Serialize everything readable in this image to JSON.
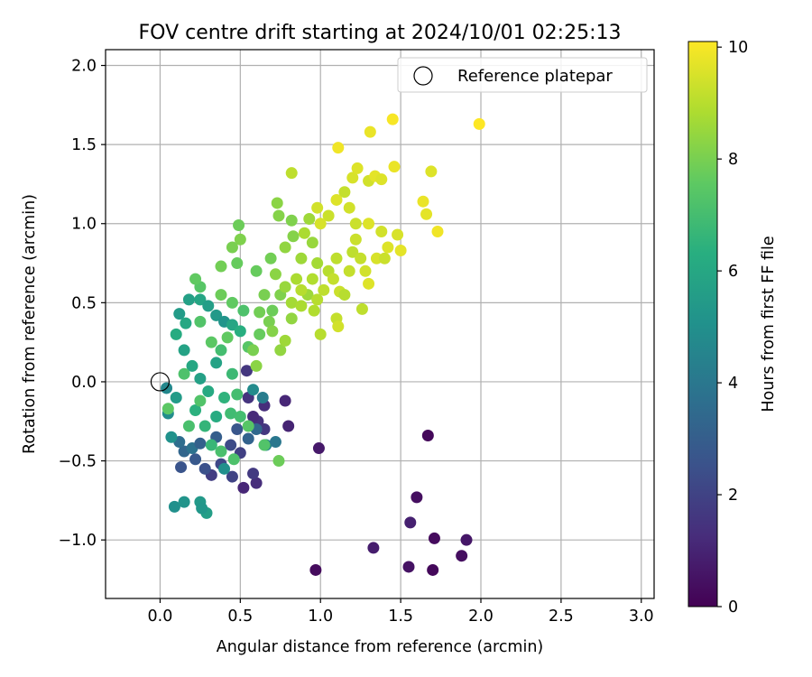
{
  "chart_data": {
    "type": "scatter",
    "title": "FOV centre drift starting at 2024/10/01 02:25:13",
    "xlabel": "Angular distance from reference (arcmin)",
    "ylabel": "Rotation from reference (arcmin)",
    "xlim": [
      -0.34,
      3.08
    ],
    "ylim": [
      -1.37,
      2.1
    ],
    "xticks": [
      "0.0",
      "0.5",
      "1.0",
      "1.5",
      "2.0",
      "2.5",
      "3.0"
    ],
    "xtick_values": [
      0,
      0.5,
      1.0,
      1.5,
      2.0,
      2.5,
      3.0
    ],
    "yticks": [
      "−1.0",
      "−0.5",
      "0.0",
      "0.5",
      "1.0",
      "1.5",
      "2.0"
    ],
    "ytick_values": [
      -1.0,
      -0.5,
      0,
      0.5,
      1.0,
      1.5,
      2.0
    ],
    "grid": true,
    "legend": {
      "placement": "top-right",
      "entries": [
        "Reference platepar"
      ]
    },
    "reference_point": {
      "x": 0,
      "y": 0
    },
    "colorbar": {
      "label": "Hours from first FF file",
      "colormap": "viridis",
      "range": [
        0,
        10.1
      ],
      "ticks": [
        "0",
        "2",
        "4",
        "6",
        "8",
        "10"
      ],
      "tick_values": [
        0,
        2,
        4,
        6,
        8,
        10
      ]
    },
    "points": [
      {
        "x": 0.97,
        "y": -1.19,
        "hours": 0.3
      },
      {
        "x": 1.7,
        "y": -1.19,
        "hours": 0.2
      },
      {
        "x": 1.55,
        "y": -1.17,
        "hours": 0.5
      },
      {
        "x": 1.88,
        "y": -1.1,
        "hours": 0.4
      },
      {
        "x": 1.33,
        "y": -1.05,
        "hours": 0.8
      },
      {
        "x": 1.91,
        "y": -1.0,
        "hours": 0.6
      },
      {
        "x": 1.71,
        "y": -0.99,
        "hours": 0.3
      },
      {
        "x": 1.56,
        "y": -0.89,
        "hours": 0.9
      },
      {
        "x": 1.6,
        "y": -0.73,
        "hours": 0.4
      },
      {
        "x": 1.67,
        "y": -0.34,
        "hours": 0.2
      },
      {
        "x": 0.99,
        "y": -0.42,
        "hours": 0.7
      },
      {
        "x": 0.8,
        "y": -0.28,
        "hours": 1.0
      },
      {
        "x": 0.78,
        "y": -0.12,
        "hours": 1.1
      },
      {
        "x": 0.65,
        "y": -0.15,
        "hours": 1.3
      },
      {
        "x": 0.61,
        "y": -0.25,
        "hours": 1.4
      },
      {
        "x": 0.65,
        "y": -0.3,
        "hours": 1.6
      },
      {
        "x": 0.58,
        "y": -0.22,
        "hours": 1.2
      },
      {
        "x": 0.55,
        "y": -0.1,
        "hours": 1.5
      },
      {
        "x": 0.52,
        "y": -0.67,
        "hours": 1.1
      },
      {
        "x": 0.6,
        "y": -0.64,
        "hours": 1.3
      },
      {
        "x": 0.58,
        "y": -0.58,
        "hours": 1.7
      },
      {
        "x": 0.45,
        "y": -0.6,
        "hours": 2.0
      },
      {
        "x": 0.32,
        "y": -0.59,
        "hours": 1.8
      },
      {
        "x": 0.38,
        "y": -0.52,
        "hours": 2.2
      },
      {
        "x": 0.28,
        "y": -0.55,
        "hours": 2.5
      },
      {
        "x": 0.22,
        "y": -0.49,
        "hours": 2.8
      },
      {
        "x": 0.13,
        "y": -0.54,
        "hours": 2.6
      },
      {
        "x": 0.54,
        "y": 0.07,
        "hours": 1.6
      },
      {
        "x": 0.5,
        "y": -0.45,
        "hours": 1.9
      },
      {
        "x": 0.44,
        "y": -0.4,
        "hours": 2.3
      },
      {
        "x": 0.48,
        "y": -0.3,
        "hours": 2.7
      },
      {
        "x": 0.35,
        "y": -0.35,
        "hours": 3.0
      },
      {
        "x": 0.55,
        "y": -0.36,
        "hours": 3.2
      },
      {
        "x": 0.6,
        "y": -0.3,
        "hours": 3.4
      },
      {
        "x": 0.15,
        "y": -0.44,
        "hours": 3.3
      },
      {
        "x": 0.12,
        "y": -0.38,
        "hours": 3.6
      },
      {
        "x": 0.2,
        "y": -0.42,
        "hours": 3.8
      },
      {
        "x": 0.25,
        "y": -0.39,
        "hours": 3.1
      },
      {
        "x": 0.66,
        "y": -0.4,
        "hours": 4.5
      },
      {
        "x": 0.72,
        "y": -0.38,
        "hours": 4.0
      },
      {
        "x": 0.64,
        "y": -0.1,
        "hours": 4.2
      },
      {
        "x": 0.58,
        "y": -0.05,
        "hours": 4.8
      },
      {
        "x": 0.09,
        "y": -0.79,
        "hours": 5.0
      },
      {
        "x": 0.15,
        "y": -0.76,
        "hours": 5.2
      },
      {
        "x": 0.25,
        "y": -0.76,
        "hours": 5.4
      },
      {
        "x": 0.29,
        "y": -0.83,
        "hours": 5.6
      },
      {
        "x": 0.26,
        "y": -0.8,
        "hours": 5.3
      },
      {
        "x": 0.4,
        "y": -0.55,
        "hours": 5.0
      },
      {
        "x": 0.07,
        "y": -0.35,
        "hours": 5.1
      },
      {
        "x": 0.05,
        "y": -0.2,
        "hours": 4.9
      },
      {
        "x": 0.04,
        "y": -0.04,
        "hours": 4.7
      },
      {
        "x": 0.1,
        "y": -0.1,
        "hours": 5.5
      },
      {
        "x": 0.15,
        "y": 0.2,
        "hours": 5.8
      },
      {
        "x": 0.12,
        "y": 0.43,
        "hours": 5.5
      },
      {
        "x": 0.18,
        "y": 0.52,
        "hours": 5.7
      },
      {
        "x": 0.25,
        "y": 0.52,
        "hours": 5.9
      },
      {
        "x": 0.16,
        "y": 0.37,
        "hours": 6.0
      },
      {
        "x": 0.1,
        "y": 0.3,
        "hours": 6.2
      },
      {
        "x": 0.3,
        "y": 0.48,
        "hours": 5.6
      },
      {
        "x": 0.35,
        "y": 0.42,
        "hours": 5.4
      },
      {
        "x": 0.4,
        "y": 0.38,
        "hours": 5.2
      },
      {
        "x": 0.45,
        "y": 0.36,
        "hours": 5.9
      },
      {
        "x": 0.5,
        "y": 0.32,
        "hours": 6.3
      },
      {
        "x": 0.2,
        "y": 0.1,
        "hours": 6.0
      },
      {
        "x": 0.25,
        "y": 0.02,
        "hours": 5.7
      },
      {
        "x": 0.3,
        "y": -0.06,
        "hours": 6.1
      },
      {
        "x": 0.35,
        "y": 0.12,
        "hours": 5.8
      },
      {
        "x": 0.22,
        "y": -0.18,
        "hours": 6.4
      },
      {
        "x": 0.28,
        "y": -0.28,
        "hours": 6.6
      },
      {
        "x": 0.35,
        "y": -0.22,
        "hours": 6.2
      },
      {
        "x": 0.4,
        "y": -0.1,
        "hours": 6.5
      },
      {
        "x": 0.45,
        "y": 0.05,
        "hours": 6.8
      },
      {
        "x": 0.48,
        "y": -0.08,
        "hours": 7.0
      },
      {
        "x": 0.44,
        "y": -0.2,
        "hours": 6.9
      },
      {
        "x": 0.32,
        "y": -0.4,
        "hours": 6.7
      },
      {
        "x": 0.38,
        "y": -0.44,
        "hours": 7.1
      },
      {
        "x": 0.46,
        "y": -0.49,
        "hours": 7.2
      },
      {
        "x": 0.65,
        "y": -0.4,
        "hours": 7.3
      },
      {
        "x": 0.74,
        "y": -0.5,
        "hours": 7.8
      },
      {
        "x": 0.55,
        "y": -0.28,
        "hours": 7.4
      },
      {
        "x": 0.5,
        "y": -0.22,
        "hours": 7.0
      },
      {
        "x": 0.05,
        "y": -0.17,
        "hours": 7.5
      },
      {
        "x": 0.18,
        "y": -0.28,
        "hours": 7.1
      },
      {
        "x": 0.25,
        "y": -0.12,
        "hours": 7.3
      },
      {
        "x": 0.15,
        "y": 0.05,
        "hours": 7.2
      },
      {
        "x": 0.32,
        "y": 0.25,
        "hours": 7.5
      },
      {
        "x": 0.38,
        "y": 0.2,
        "hours": 7.0
      },
      {
        "x": 0.25,
        "y": 0.38,
        "hours": 7.3
      },
      {
        "x": 0.42,
        "y": 0.28,
        "hours": 7.6
      },
      {
        "x": 0.55,
        "y": 0.22,
        "hours": 7.4
      },
      {
        "x": 0.62,
        "y": 0.3,
        "hours": 7.7
      },
      {
        "x": 0.52,
        "y": 0.45,
        "hours": 7.2
      },
      {
        "x": 0.45,
        "y": 0.5,
        "hours": 7.6
      },
      {
        "x": 0.38,
        "y": 0.55,
        "hours": 7.8
      },
      {
        "x": 0.25,
        "y": 0.6,
        "hours": 7.4
      },
      {
        "x": 0.22,
        "y": 0.65,
        "hours": 7.6
      },
      {
        "x": 0.62,
        "y": 0.44,
        "hours": 7.9
      },
      {
        "x": 0.68,
        "y": 0.38,
        "hours": 8.0
      },
      {
        "x": 0.7,
        "y": 0.45,
        "hours": 7.8
      },
      {
        "x": 0.75,
        "y": 0.55,
        "hours": 8.1
      },
      {
        "x": 0.65,
        "y": 0.55,
        "hours": 8.0
      },
      {
        "x": 0.6,
        "y": 0.7,
        "hours": 7.7
      },
      {
        "x": 0.69,
        "y": 0.78,
        "hours": 7.9
      },
      {
        "x": 0.38,
        "y": 0.73,
        "hours": 7.9
      },
      {
        "x": 0.48,
        "y": 0.75,
        "hours": 7.7
      },
      {
        "x": 0.45,
        "y": 0.85,
        "hours": 8.0
      },
      {
        "x": 0.5,
        "y": 0.9,
        "hours": 8.1
      },
      {
        "x": 0.49,
        "y": 0.99,
        "hours": 7.8
      },
      {
        "x": 0.74,
        "y": 1.05,
        "hours": 8.2
      },
      {
        "x": 0.73,
        "y": 1.13,
        "hours": 8.3
      },
      {
        "x": 0.82,
        "y": 1.02,
        "hours": 8.1
      },
      {
        "x": 0.83,
        "y": 0.92,
        "hours": 8.2
      },
      {
        "x": 0.78,
        "y": 0.85,
        "hours": 8.4
      },
      {
        "x": 0.88,
        "y": 0.78,
        "hours": 8.6
      },
      {
        "x": 0.72,
        "y": 0.68,
        "hours": 8.3
      },
      {
        "x": 0.78,
        "y": 0.6,
        "hours": 8.5
      },
      {
        "x": 0.82,
        "y": 0.5,
        "hours": 8.7
      },
      {
        "x": 0.7,
        "y": 0.32,
        "hours": 8.2
      },
      {
        "x": 0.58,
        "y": 0.2,
        "hours": 8.0
      },
      {
        "x": 0.6,
        "y": 0.1,
        "hours": 8.3
      },
      {
        "x": 0.75,
        "y": 0.2,
        "hours": 8.4
      },
      {
        "x": 0.78,
        "y": 0.26,
        "hours": 8.6
      },
      {
        "x": 0.82,
        "y": 0.4,
        "hours": 8.4
      },
      {
        "x": 0.88,
        "y": 0.48,
        "hours": 8.8
      },
      {
        "x": 0.92,
        "y": 0.55,
        "hours": 8.6
      },
      {
        "x": 0.95,
        "y": 0.65,
        "hours": 8.9
      },
      {
        "x": 0.98,
        "y": 0.75,
        "hours": 8.7
      },
      {
        "x": 0.95,
        "y": 0.88,
        "hours": 8.5
      },
      {
        "x": 0.9,
        "y": 0.94,
        "hours": 8.8
      },
      {
        "x": 0.93,
        "y": 1.03,
        "hours": 8.6
      },
      {
        "x": 0.85,
        "y": 0.65,
        "hours": 8.8
      },
      {
        "x": 0.88,
        "y": 0.58,
        "hours": 9.0
      },
      {
        "x": 0.98,
        "y": 0.52,
        "hours": 9.0
      },
      {
        "x": 0.96,
        "y": 0.45,
        "hours": 8.9
      },
      {
        "x": 1.02,
        "y": 0.58,
        "hours": 9.1
      },
      {
        "x": 1.05,
        "y": 0.7,
        "hours": 9.0
      },
      {
        "x": 1.08,
        "y": 0.65,
        "hours": 9.2
      },
      {
        "x": 1.1,
        "y": 0.78,
        "hours": 9.1
      },
      {
        "x": 1.12,
        "y": 0.57,
        "hours": 9.3
      },
      {
        "x": 1.1,
        "y": 0.4,
        "hours": 9.2
      },
      {
        "x": 1.11,
        "y": 0.35,
        "hours": 9.4
      },
      {
        "x": 1.15,
        "y": 0.55,
        "hours": 9.0
      },
      {
        "x": 1.18,
        "y": 0.7,
        "hours": 9.2
      },
      {
        "x": 1.2,
        "y": 0.82,
        "hours": 9.1
      },
      {
        "x": 1.22,
        "y": 0.9,
        "hours": 9.3
      },
      {
        "x": 1.25,
        "y": 0.78,
        "hours": 9.2
      },
      {
        "x": 1.28,
        "y": 0.7,
        "hours": 9.4
      },
      {
        "x": 1.3,
        "y": 0.62,
        "hours": 9.6
      },
      {
        "x": 1.26,
        "y": 0.46,
        "hours": 9.1
      },
      {
        "x": 1.35,
        "y": 0.78,
        "hours": 9.5
      },
      {
        "x": 1.4,
        "y": 0.78,
        "hours": 9.3
      },
      {
        "x": 1.42,
        "y": 0.85,
        "hours": 9.6
      },
      {
        "x": 1.5,
        "y": 0.83,
        "hours": 9.7
      },
      {
        "x": 1.48,
        "y": 0.93,
        "hours": 9.5
      },
      {
        "x": 1.38,
        "y": 0.95,
        "hours": 9.4
      },
      {
        "x": 1.3,
        "y": 1.0,
        "hours": 9.6
      },
      {
        "x": 1.22,
        "y": 1.0,
        "hours": 9.3
      },
      {
        "x": 1.18,
        "y": 1.1,
        "hours": 9.4
      },
      {
        "x": 1.15,
        "y": 1.2,
        "hours": 9.2
      },
      {
        "x": 1.1,
        "y": 1.15,
        "hours": 9.6
      },
      {
        "x": 1.05,
        "y": 1.05,
        "hours": 9.3
      },
      {
        "x": 1.0,
        "y": 1.0,
        "hours": 9.5
      },
      {
        "x": 0.98,
        "y": 1.1,
        "hours": 9.4
      },
      {
        "x": 1.2,
        "y": 1.29,
        "hours": 9.5
      },
      {
        "x": 1.23,
        "y": 1.35,
        "hours": 9.6
      },
      {
        "x": 1.3,
        "y": 1.27,
        "hours": 9.4
      },
      {
        "x": 1.34,
        "y": 1.3,
        "hours": 9.7
      },
      {
        "x": 1.38,
        "y": 1.28,
        "hours": 9.6
      },
      {
        "x": 1.46,
        "y": 1.36,
        "hours": 9.8
      },
      {
        "x": 1.31,
        "y": 1.58,
        "hours": 9.8
      },
      {
        "x": 1.11,
        "y": 1.48,
        "hours": 9.9
      },
      {
        "x": 1.45,
        "y": 1.66,
        "hours": 10.0
      },
      {
        "x": 1.99,
        "y": 1.63,
        "hours": 10.1
      },
      {
        "x": 1.69,
        "y": 1.33,
        "hours": 9.6
      },
      {
        "x": 1.64,
        "y": 1.14,
        "hours": 9.8
      },
      {
        "x": 1.66,
        "y": 1.06,
        "hours": 9.7
      },
      {
        "x": 1.73,
        "y": 0.95,
        "hours": 9.9
      },
      {
        "x": 0.82,
        "y": 1.32,
        "hours": 9.1
      },
      {
        "x": 1.0,
        "y": 0.3,
        "hours": 9.0
      }
    ]
  }
}
